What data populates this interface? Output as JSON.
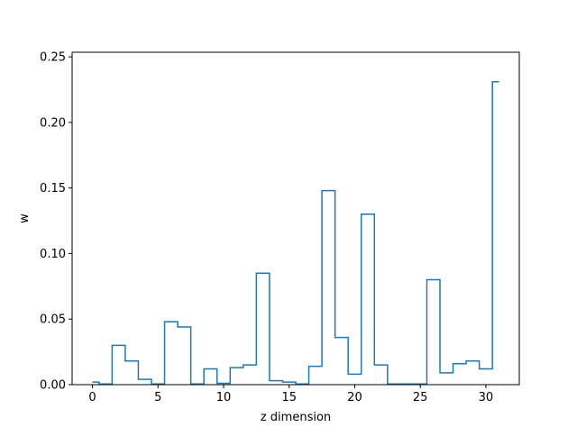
{
  "chart_data": {
    "type": "line",
    "style": "step",
    "title": "",
    "xlabel": "z dimension",
    "ylabel": "w",
    "xlim": [
      -1.55,
      32.55
    ],
    "ylim": [
      0,
      0.2535
    ],
    "xticks": [
      0,
      5,
      10,
      15,
      20,
      25,
      30
    ],
    "yticks": [
      0.0,
      0.05,
      0.1,
      0.15,
      0.2,
      0.25
    ],
    "ytick_labels": [
      "0.00",
      "0.05",
      "0.10",
      "0.15",
      "0.20",
      "0.25"
    ],
    "grid": false,
    "legend": "none",
    "color": "#1f77b4",
    "x": [
      0,
      1,
      2,
      3,
      4,
      5,
      6,
      7,
      8,
      9,
      10,
      11,
      12,
      13,
      14,
      15,
      16,
      17,
      18,
      19,
      20,
      21,
      22,
      23,
      24,
      25,
      26,
      27,
      28,
      29,
      30,
      31
    ],
    "values": [
      0.002,
      0.0005,
      0.03,
      0.018,
      0.004,
      0.0005,
      0.048,
      0.044,
      0.0005,
      0.012,
      0.001,
      0.013,
      0.015,
      0.085,
      0.003,
      0.002,
      0.0005,
      0.014,
      0.148,
      0.036,
      0.008,
      0.13,
      0.015,
      0.0005,
      0.0005,
      0.0005,
      0.08,
      0.009,
      0.016,
      0.018,
      0.012,
      0.231
    ]
  }
}
